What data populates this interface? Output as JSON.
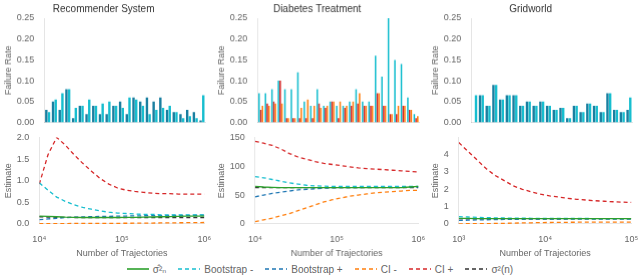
{
  "chart_data": [
    {
      "type": "bar",
      "title": "Recommender System",
      "categories": [
        null,
        null,
        null,
        null,
        null,
        null,
        null,
        null,
        null,
        null,
        null,
        null,
        null,
        null,
        null,
        null,
        null,
        null,
        null,
        null,
        null,
        null,
        null,
        null
      ],
      "series": [
        {
          "color": "#1a7fa0",
          "values": [
            0.03,
            0.05,
            0.03,
            0.08,
            0.01,
            0.04,
            0.02,
            0.04,
            0.02,
            0.02,
            0.04,
            0.05,
            0.02,
            0.06,
            0.05,
            0.06,
            0.05,
            0.06,
            0.03,
            0.025,
            0.02,
            0.03,
            0.025,
            0.005
          ]
        },
        {
          "color": "#17becf",
          "values": [
            0.025,
            0.055,
            0.07,
            0.08,
            0.035,
            0.04,
            0.055,
            0.04,
            0.045,
            0.05,
            0.04,
            0.035,
            0.06,
            0.055,
            0.04,
            0.02,
            0.03,
            0.035,
            0.04,
            0.025,
            0.01,
            0.015,
            0.01,
            0.065
          ]
        }
      ],
      "ylabel": "Failure Rate",
      "ylim": [
        0,
        0.25
      ],
      "yticks": [
        {
          "value": 0,
          "label": "0.00"
        },
        0.05,
        {
          "value": 0.1,
          "label": "0.10"
        },
        0.15,
        {
          "value": 0.2,
          "label": "0.20"
        },
        0.25
      ],
      "grid": false,
      "tick_labels": "y"
    },
    {
      "type": "bar",
      "title": "Diabetes Treatment",
      "categories": [
        null,
        null,
        null,
        null,
        null,
        null,
        null,
        null,
        null,
        null,
        null,
        null,
        null,
        null,
        null,
        null,
        null,
        null,
        null,
        null,
        null,
        null,
        null,
        null,
        null
      ],
      "series": [
        {
          "color": "#17becf",
          "values": [
            0.07,
            0.07,
            0.08,
            0.1,
            0.08,
            0.08,
            0.12,
            0.05,
            0.04,
            0.08,
            0.04,
            0.05,
            0.04,
            0.04,
            0.05,
            0.08,
            0.05,
            0.05,
            0.16,
            0.11,
            0.25,
            0.15,
            0.14,
            0.06,
            0.02
          ]
        },
        {
          "color": "#d62728",
          "values": [
            0.03,
            0.045,
            0.05,
            0.1,
            0.01,
            0.01,
            0.01,
            0.01,
            0.01,
            0.045,
            0.035,
            0.05,
            0.01,
            0.035,
            0.04,
            0.045,
            0.04,
            0.04,
            0.07,
            0.04,
            0.02,
            0.02,
            0.04,
            0.03,
            0.01
          ]
        },
        {
          "color": "#ff7f0e",
          "values": [
            0.04,
            0.04,
            0.045,
            0.045,
            0.01,
            0.01,
            0.035,
            0.055,
            0.04,
            0.035,
            0.04,
            0.05,
            0.05,
            0.04,
            0.05,
            0.07,
            0.04,
            0.04,
            0.07,
            0.04,
            0.02,
            0.04,
            0.04,
            0.03,
            0.015
          ]
        }
      ],
      "ylabel": "Failure Rate",
      "ylim": [
        0,
        0.25
      ],
      "yticks": [
        {
          "value": 0,
          "label": "0.00"
        },
        0.05,
        {
          "value": 0.1,
          "label": "0.10"
        },
        0.15,
        {
          "value": 0.2,
          "label": "0.20"
        },
        0.25
      ],
      "grid": false,
      "tick_labels": "y"
    },
    {
      "type": "bar",
      "title": "Gridworld",
      "categories": [
        null,
        null,
        null,
        null,
        null,
        null,
        null,
        null,
        null,
        null,
        null,
        null,
        null,
        null,
        null,
        null,
        null,
        null,
        null,
        null,
        null,
        null,
        null,
        null
      ],
      "series": [
        {
          "color": "#1a7fa0",
          "values": [
            0.0,
            0.065,
            0.04,
            0.09,
            0.055,
            0.065,
            0.065,
            0.04,
            0.05,
            0.04,
            0.05,
            0.04,
            0.03,
            0.035,
            0.01,
            0.04,
            0.025,
            0.045,
            0.04,
            0.025,
            0.07,
            0.03,
            0.025,
            0.03
          ]
        },
        {
          "color": "#17becf",
          "values": [
            0.065,
            0.065,
            0.04,
            0.09,
            0.055,
            0.065,
            0.065,
            0.04,
            0.05,
            0.04,
            0.05,
            0.04,
            0.03,
            0.035,
            0.01,
            0.04,
            0.025,
            0.045,
            0.04,
            0.025,
            0.07,
            0.03,
            0.025,
            0.06
          ]
        }
      ],
      "ylabel": "Failure Rate",
      "ylim": [
        0,
        0.25
      ],
      "yticks": [
        {
          "value": 0,
          "label": "0.00"
        },
        0.05,
        {
          "value": 0.1,
          "label": "0.10"
        },
        0.15,
        {
          "value": 0.2,
          "label": "0.20"
        },
        0.25
      ],
      "grid": false,
      "tick_labels": "y"
    },
    {
      "type": "line",
      "x": [
        10000,
        12743,
        16238,
        20691,
        26367,
        33598,
        42813,
        54556,
        69519,
        88587,
        112884,
        143845,
        183298,
        233572,
        297635,
        379269,
        483293,
        615848,
        784760,
        1000000
      ],
      "series": [
        {
          "name": "σ̂²ₙ",
          "color": "#2ca02c",
          "line_style": "solid",
          "values": [
            0.18,
            0.175,
            0.165,
            0.155,
            0.15,
            0.148,
            0.148,
            0.148,
            0.148,
            0.148,
            0.15,
            0.152,
            0.155,
            0.16,
            0.165,
            0.17,
            0.175,
            0.178,
            0.18,
            0.182
          ]
        },
        {
          "name": "Bootstrap -",
          "color": "#17becf",
          "line_style": "dashed",
          "values": [
            0.95,
            0.78,
            0.62,
            0.52,
            0.44,
            0.38,
            0.34,
            0.3,
            0.27,
            0.25,
            0.24,
            0.23,
            0.22,
            0.22,
            0.21,
            0.21,
            0.21,
            0.21,
            0.21,
            0.21
          ]
        },
        {
          "name": "Bootstrap +",
          "color": "#1f77b4",
          "line_style": "dashed",
          "values": [
            0.1,
            0.115,
            0.13,
            0.145,
            0.155,
            0.162,
            0.168,
            0.172,
            0.175,
            0.178,
            0.182,
            0.185,
            0.188,
            0.19,
            0.192,
            0.194,
            0.196,
            0.198,
            0.2,
            0.202
          ]
        },
        {
          "name": "CI -",
          "color": "#ff7f0e",
          "line_style": "dashed",
          "values": [
            0.005,
            0.006,
            0.007,
            0.008,
            0.009,
            0.01,
            0.011,
            0.012,
            0.013,
            0.014,
            0.015,
            0.016,
            0.018,
            0.02,
            0.022,
            0.024,
            0.026,
            0.028,
            0.03,
            0.032
          ]
        },
        {
          "name": "CI +",
          "color": "#d62728",
          "line_style": "dashed",
          "values": [
            0.92,
            1.6,
            2.0,
            1.82,
            1.6,
            1.4,
            1.22,
            1.05,
            0.92,
            0.83,
            0.78,
            0.75,
            0.73,
            0.71,
            0.7,
            0.7,
            0.69,
            0.69,
            0.69,
            0.69
          ]
        },
        {
          "name": "σ²(n)",
          "color": "#333333",
          "line_style": "dashed",
          "values": [
            0.165,
            0.158,
            0.153,
            0.15,
            0.148,
            0.147,
            0.147,
            0.147,
            0.147,
            0.147,
            0.147,
            0.147,
            0.147,
            0.147,
            0.147,
            0.147,
            0.147,
            0.147,
            0.147,
            0.147
          ]
        }
      ],
      "xlabel": "Number of Trajectories",
      "ylabel": "Estimate",
      "xlim": [
        10000,
        1000000
      ],
      "xticks": [
        {
          "value": 10000,
          "label": "10⁴"
        },
        {
          "value": 100000,
          "label": "10⁵"
        },
        {
          "value": 1000000,
          "label": "10⁶"
        }
      ],
      "ylim": [
        0,
        2.0
      ],
      "yticks": [
        {
          "value": 0,
          "label": "0.0"
        },
        0.5,
        {
          "value": 1,
          "label": "1.0"
        },
        1.5,
        {
          "value": 2,
          "label": "2.0"
        }
      ],
      "log": "x",
      "grid": false,
      "legend": "bottom"
    },
    {
      "type": "line",
      "x": [
        10000,
        12743,
        16238,
        20691,
        26367,
        33598,
        42813,
        54556,
        69519,
        88587,
        112884,
        143845,
        183298,
        233572,
        297635,
        379269,
        483293,
        615848,
        784760,
        1000000
      ],
      "series": [
        {
          "name": "σ̂²ₙ",
          "color": "#2ca02c",
          "line_style": "solid",
          "values": [
            65,
            64,
            63.5,
            63,
            63,
            63,
            63,
            63,
            63,
            63,
            63,
            63,
            63,
            63,
            63,
            63,
            63,
            63,
            64,
            65
          ]
        },
        {
          "name": "Bootstrap -",
          "color": "#17becf",
          "line_style": "dashed",
          "values": [
            82,
            80,
            77,
            74,
            71,
            69,
            67,
            66,
            65.5,
            65,
            65,
            65,
            65,
            65,
            65,
            65,
            65,
            65,
            65,
            65
          ]
        },
        {
          "name": "Bootstrap +",
          "color": "#1f77b4",
          "line_style": "dashed",
          "values": [
            47,
            50,
            53,
            55,
            57,
            59,
            60,
            61,
            62,
            62.5,
            63,
            63,
            63,
            63.5,
            64,
            64,
            64,
            64,
            64,
            64
          ]
        },
        {
          "name": "CI -",
          "color": "#ff7f0e",
          "line_style": "dashed",
          "values": [
            4,
            7,
            10,
            14,
            18,
            23,
            28,
            33,
            38,
            42,
            45,
            48,
            50,
            52,
            54,
            55,
            56,
            57,
            58,
            58
          ]
        },
        {
          "name": "CI +",
          "color": "#d62728",
          "line_style": "dashed",
          "values": [
            143,
            140,
            136,
            130,
            122,
            116,
            112,
            108,
            105,
            103,
            101,
            99,
            97,
            96,
            95,
            94,
            93,
            92,
            91,
            90
          ]
        },
        {
          "name": "σ²(n)",
          "color": "#333333",
          "line_style": "dashed",
          "values": [
            63,
            63,
            63,
            63,
            63,
            63,
            63,
            63,
            63,
            63,
            63,
            63,
            63,
            63,
            63,
            63,
            63,
            63,
            63,
            63
          ]
        }
      ],
      "xlabel": "Number of Trajectories",
      "ylabel": "Estimate",
      "xlim": [
        10000,
        1000000
      ],
      "xticks": [
        {
          "value": 10000,
          "label": "10⁴"
        },
        {
          "value": 100000,
          "label": "10⁵"
        },
        {
          "value": 1000000,
          "label": "10⁶"
        }
      ],
      "ylim": [
        0,
        150
      ],
      "yticks": [
        0,
        50,
        100,
        150
      ],
      "log": "x",
      "grid": false,
      "legend": "bottom"
    },
    {
      "type": "line",
      "x": [
        1000,
        1274.3,
        1623.8,
        2069.1,
        2636.7,
        3359.8,
        4281.3,
        5455.6,
        6951.9,
        8858.7,
        11288.4,
        14384.5,
        18329.8,
        23357.2,
        29763.5,
        37926.9,
        48329.3,
        61584.8,
        78476.0,
        100000
      ],
      "series": [
        {
          "name": "σ̂²ₙ",
          "color": "#2ca02c",
          "line_style": "solid",
          "values": [
            0.32,
            0.315,
            0.31,
            0.308,
            0.306,
            0.305,
            0.304,
            0.303,
            0.303,
            0.303,
            0.303,
            0.303,
            0.303,
            0.303,
            0.303,
            0.303,
            0.303,
            0.303,
            0.303,
            0.303
          ]
        },
        {
          "name": "Bootstrap -",
          "color": "#17becf",
          "line_style": "dashed",
          "values": [
            0.42,
            0.4,
            0.38,
            0.36,
            0.35,
            0.34,
            0.335,
            0.33,
            0.325,
            0.32,
            0.318,
            0.315,
            0.313,
            0.312,
            0.311,
            0.31,
            0.31,
            0.31,
            0.31,
            0.31
          ]
        },
        {
          "name": "Bootstrap +",
          "color": "#1f77b4",
          "line_style": "dashed",
          "values": [
            0.2,
            0.215,
            0.228,
            0.24,
            0.25,
            0.258,
            0.265,
            0.27,
            0.274,
            0.278,
            0.281,
            0.283,
            0.285,
            0.287,
            0.289,
            0.29,
            0.291,
            0.292,
            0.293,
            0.294
          ]
        },
        {
          "name": "CI -",
          "color": "#ff7f0e",
          "line_style": "dashed",
          "values": [
            0.005,
            0.008,
            0.012,
            0.018,
            0.025,
            0.035,
            0.045,
            0.055,
            0.065,
            0.075,
            0.082,
            0.088,
            0.093,
            0.097,
            0.1,
            0.102,
            0.104,
            0.105,
            0.106,
            0.107
          ]
        },
        {
          "name": "CI +",
          "color": "#d62728",
          "line_style": "dashed",
          "values": [
            4.7,
            4.2,
            3.7,
            3.2,
            2.8,
            2.5,
            2.2,
            2.0,
            1.85,
            1.72,
            1.62,
            1.55,
            1.48,
            1.42,
            1.38,
            1.34,
            1.31,
            1.28,
            1.26,
            1.24
          ]
        },
        {
          "name": "σ²(n)",
          "color": "#333333",
          "line_style": "dashed",
          "values": [
            0.3,
            0.298,
            0.296,
            0.295,
            0.294,
            0.293,
            0.293,
            0.293,
            0.293,
            0.293,
            0.293,
            0.293,
            0.293,
            0.293,
            0.293,
            0.293,
            0.293,
            0.293,
            0.293,
            0.293
          ]
        }
      ],
      "xlabel": "Number of Trajectories",
      "ylabel": "Estimate",
      "xlim": [
        1000,
        100000
      ],
      "xticks": [
        {
          "value": 1000,
          "label": "10³"
        },
        {
          "value": 10000,
          "label": "10⁴"
        },
        {
          "value": 100000,
          "label": "10⁵"
        }
      ],
      "ylim": [
        0,
        5
      ],
      "yticks": [
        0,
        1,
        2,
        3,
        4
      ],
      "log": "x",
      "grid": false,
      "legend": "bottom"
    }
  ]
}
